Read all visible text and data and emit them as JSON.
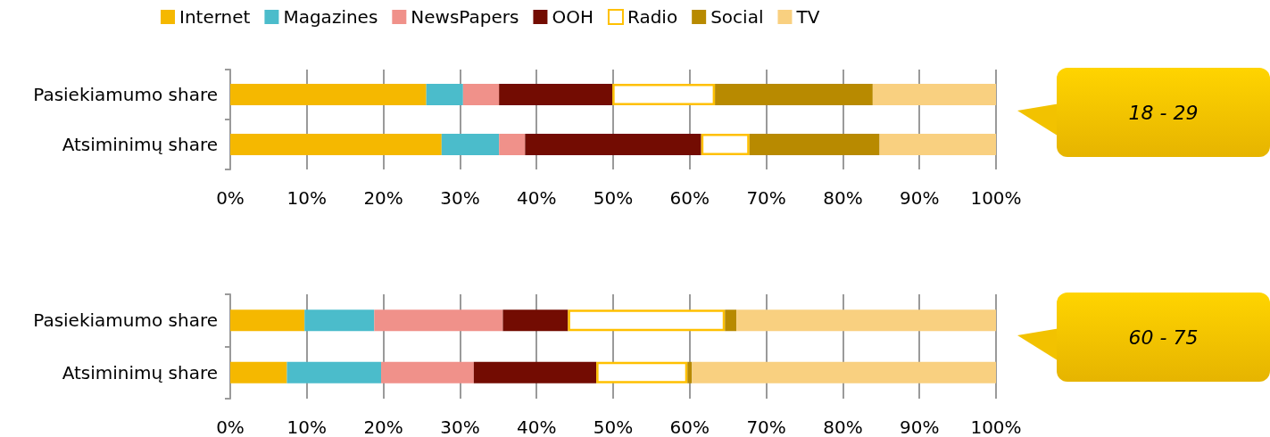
{
  "chart_data": [
    {
      "type": "bar",
      "orientation": "horizontal",
      "stacked": true,
      "legend": "top",
      "grid": "x",
      "categories": [
        "Pasiekiamumo share",
        "Atsiminimų share"
      ],
      "xlim": [
        0,
        100
      ],
      "xticks": [
        {
          "value": 0,
          "label": "0%"
        },
        {
          "value": 10,
          "label": "10%"
        },
        {
          "value": 20,
          "label": "20%"
        },
        {
          "value": 30,
          "label": "30%"
        },
        {
          "value": 40,
          "label": "40%"
        },
        {
          "value": 50,
          "label": "50%"
        },
        {
          "value": 60,
          "label": "60%"
        },
        {
          "value": 70,
          "label": "70%"
        },
        {
          "value": 80,
          "label": "80%"
        },
        {
          "value": 90,
          "label": "90%"
        },
        {
          "value": 100,
          "label": "100%"
        }
      ],
      "annotations": [
        "18 - 29"
      ],
      "series": [
        {
          "name": "Internet",
          "color": "#f5b800",
          "values": [
            25.6,
            27.6
          ]
        },
        {
          "name": "Magazines",
          "color": "#4bbccb",
          "values": [
            4.8,
            7.5
          ]
        },
        {
          "name": "NewsPapers",
          "color": "#f0918a",
          "values": [
            4.7,
            3.4
          ]
        },
        {
          "name": "OOH",
          "color": "#730c02",
          "values": [
            14.8,
            23.0
          ]
        },
        {
          "name": "Radio",
          "color": "#ffffff",
          "values": [
            13.4,
            6.3
          ]
        },
        {
          "name": "Social",
          "color": "#b88a00",
          "values": [
            20.6,
            17.0
          ]
        },
        {
          "name": "TV",
          "color": "#f9d080",
          "values": [
            16.1,
            15.2
          ]
        }
      ]
    },
    {
      "type": "bar",
      "orientation": "horizontal",
      "stacked": true,
      "grid": "x",
      "categories": [
        "Pasiekiamumo share",
        "Atsiminimų share"
      ],
      "xlim": [
        0,
        100
      ],
      "xticks": [
        {
          "value": 0,
          "label": "0%"
        },
        {
          "value": 10,
          "label": "10%"
        },
        {
          "value": 20,
          "label": "20%"
        },
        {
          "value": 30,
          "label": "30%"
        },
        {
          "value": 40,
          "label": "40%"
        },
        {
          "value": 50,
          "label": "50%"
        },
        {
          "value": 60,
          "label": "60%"
        },
        {
          "value": 70,
          "label": "70%"
        },
        {
          "value": 80,
          "label": "80%"
        },
        {
          "value": 90,
          "label": "90%"
        },
        {
          "value": 100,
          "label": "100%"
        }
      ],
      "annotations": [
        "60 - 75"
      ],
      "series": [
        {
          "color": "#f5b800",
          "values": [
            9.7,
            7.4
          ]
        },
        {
          "color": "#4bbccb",
          "values": [
            9.1,
            12.3
          ]
        },
        {
          "color": "#f0918a",
          "values": [
            16.8,
            12.1
          ]
        },
        {
          "color": "#730c02",
          "values": [
            8.5,
            16.0
          ]
        },
        {
          "color": "#ffffff",
          "values": [
            20.5,
            11.9
          ]
        },
        {
          "color": "#b88a00",
          "values": [
            1.5,
            0.6
          ]
        },
        {
          "color": "#f9d080",
          "values": [
            33.9,
            39.7
          ]
        }
      ]
    }
  ]
}
